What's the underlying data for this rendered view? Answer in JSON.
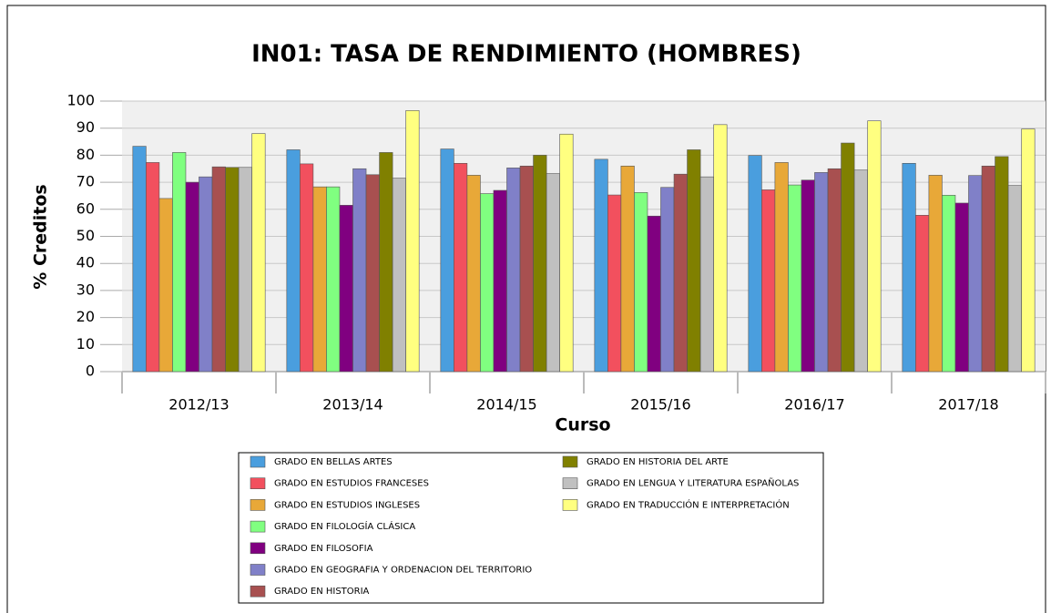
{
  "chart_data": {
    "type": "bar",
    "title": "IN01: TASA DE RENDIMIENTO (HOMBRES)",
    "x_label": "Curso",
    "y_label": "% Creditos",
    "categories": [
      "2012/13",
      "2013/14",
      "2014/15",
      "2015/16",
      "2016/17",
      "2017/18"
    ],
    "series": [
      {
        "name": "GRADO EN BELLAS ARTES",
        "color": "#4a9ede",
        "values": [
          83.3,
          82,
          82.3,
          78.5,
          79.9,
          77
        ]
      },
      {
        "name": "GRADO EN ESTUDIOS FRANCESES",
        "color": "#f2505e",
        "values": [
          77.3,
          76.8,
          77,
          65.3,
          67.2,
          57.8
        ]
      },
      {
        "name": "GRADO EN ESTUDIOS INGLESES",
        "color": "#e8a838",
        "values": [
          64,
          68.3,
          72.6,
          76,
          77.3,
          72.6
        ]
      },
      {
        "name": "GRADO EN FILOLOGÍA CLÁSICA",
        "color": "#80ff80",
        "values": [
          81,
          68.3,
          65.8,
          66.2,
          69,
          65.2
        ]
      },
      {
        "name": "GRADO EN FILOSOFIA",
        "color": "#800080",
        "values": [
          70,
          61.5,
          67,
          57.5,
          70.8,
          62.3
        ]
      },
      {
        "name": "GRADO EN GEOGRAFIA Y ORDENACION DEL TERRITORIO",
        "color": "#8080c8",
        "values": [
          72,
          75,
          75.3,
          68.1,
          73.6,
          72.5
        ]
      },
      {
        "name": "GRADO EN HISTORIA",
        "color": "#a85050",
        "values": [
          75.7,
          72.8,
          76,
          73,
          75,
          76
        ]
      },
      {
        "name": "GRADO EN HISTORIA DEL ARTE",
        "color": "#808000",
        "values": [
          75.5,
          81,
          80,
          82,
          84.5,
          79.5
        ]
      },
      {
        "name": "GRADO EN LENGUA Y LITERATURA ESPAÑOLAS",
        "color": "#c0c0c0",
        "values": [
          75.5,
          71.5,
          73.2,
          72,
          74.5,
          68.8
        ]
      },
      {
        "name": "GRADO EN TRADUCCIÓN E INTERPRETACIÓN",
        "color": "#ffff80",
        "values": [
          88,
          96.5,
          87.8,
          91.3,
          92.7,
          89.7
        ]
      }
    ],
    "ylim": [
      0,
      100
    ],
    "yticks": [
      0,
      10,
      20,
      30,
      40,
      50,
      60,
      70,
      80,
      90,
      100
    ],
    "grid": true
  }
}
